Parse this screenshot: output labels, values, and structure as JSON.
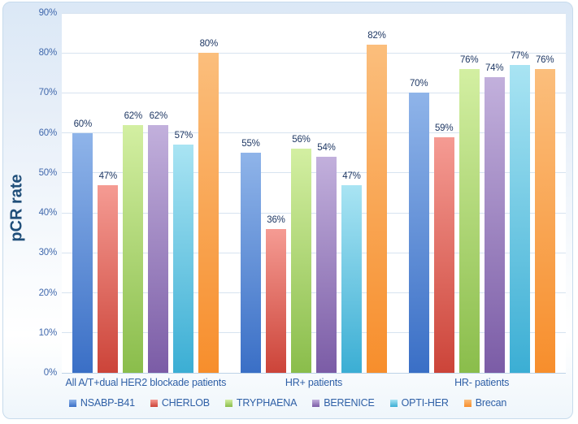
{
  "chart_data": {
    "type": "bar",
    "title": "",
    "ylabel": "pCR rate",
    "xlabel": "",
    "categories": [
      "All A/T+dual HER2 blockade patients",
      "HR+ patients",
      "HR- patients"
    ],
    "series": [
      {
        "name": "NSABP-B41",
        "values": [
          60,
          55,
          70
        ],
        "color": {
          "top": "#8FB4E9",
          "bottom": "#3A6FC6"
        }
      },
      {
        "name": "CHERLOB",
        "values": [
          47,
          36,
          59
        ],
        "color": {
          "top": "#F59B93",
          "bottom": "#CC4439"
        }
      },
      {
        "name": "TRYPHAENA",
        "values": [
          62,
          56,
          76
        ],
        "color": {
          "top": "#D3EFA2",
          "bottom": "#8ABD4B"
        }
      },
      {
        "name": "BERENICE",
        "values": [
          62,
          54,
          74
        ],
        "color": {
          "top": "#C2B0DC",
          "bottom": "#7B5CA6"
        }
      },
      {
        "name": "OPTI-HER",
        "values": [
          57,
          47,
          77
        ],
        "color": {
          "top": "#A9E4F3",
          "bottom": "#3BAED4"
        }
      },
      {
        "name": "Brecan",
        "values": [
          80,
          82,
          76
        ],
        "color": {
          "top": "#FBBE7C",
          "bottom": "#F78E2C"
        }
      }
    ],
    "ylim": [
      0,
      90
    ],
    "ytick_step": 10,
    "ytick_suffix": "%",
    "data_label_suffix": "%",
    "grid": true,
    "legend_position": "bottom"
  },
  "colors": {
    "tick_label": "#4169AD",
    "data_label": "#1F3864",
    "category_label": "#2E5FA6",
    "legend_label": "#2E5FA6",
    "axis_title": "#1F4E79",
    "gridline": "#D7E3F0",
    "baseline": "#BDD2E7",
    "chart_border": "#C7DBEC",
    "background_top": "#DBE8F6",
    "background_bottom": "#FFFFFF"
  }
}
